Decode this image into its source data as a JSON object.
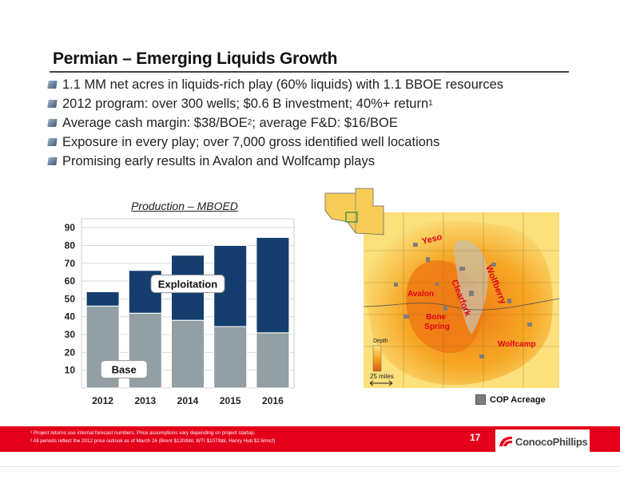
{
  "slide": {
    "title": "Permian – Emerging Liquids Growth",
    "page_number": "17"
  },
  "bullets": [
    {
      "text": "1.1 MM net acres in liquids-rich play (60% liquids) with 1.1 BBOE resources",
      "sup": "",
      "tail": ""
    },
    {
      "text": "2012 program: over 300 wells; $0.6 B investment; 40%+ return",
      "sup": "1",
      "tail": ""
    },
    {
      "text": "Average cash margin: $38/BOE",
      "sup": "2",
      "tail": "; average F&D: $16/BOE"
    },
    {
      "text": "Exposure in every play; over 7,000 gross identified well locations",
      "sup": "",
      "tail": ""
    },
    {
      "text": "Promising early results in Avalon and Wolfcamp plays",
      "sup": "",
      "tail": ""
    }
  ],
  "chart_data": {
    "type": "bar",
    "stacked": true,
    "title": "Production – MBOED",
    "categories": [
      "2012",
      "2013",
      "2014",
      "2015",
      "2016"
    ],
    "series": [
      {
        "name": "Base",
        "values": [
          46,
          42,
          38,
          34.5,
          31
        ],
        "color": "#929fa5"
      },
      {
        "name": "Exploitation",
        "values": [
          8,
          24,
          36.5,
          45.5,
          53.5
        ],
        "color": "#153e6e"
      }
    ],
    "yticks": [
      10,
      20,
      30,
      40,
      50,
      60,
      70,
      80,
      90
    ],
    "ylim": [
      0,
      95
    ],
    "grid": true
  },
  "map": {
    "plays": [
      "Yeso",
      "Avalon",
      "Clearfork",
      "Wolfberry",
      "Bone Spring",
      "Wolfcamp"
    ],
    "depth_label": "Depth",
    "scale_label": "25 miles",
    "legend_label": "COP Acreage",
    "colors": {
      "shallow": "#fbe07c",
      "mid": "#f6a623",
      "deep": "#ee7a14",
      "acreage": "#7d7d7d",
      "play_label": "#e2001a"
    }
  },
  "footer": {
    "footnote_1": "¹ Project returns use internal forecast numbers. Price assumptions vary depending on project startup.",
    "footnote_2": "² All periods reflect the 2012 price outlook as of March 26 (Brent $120/bbl, WTI $107/bbl, Henry Hub $2.6/mcf)",
    "logo_text": "ConocoPhillips",
    "accent_color": "#e4001b"
  }
}
